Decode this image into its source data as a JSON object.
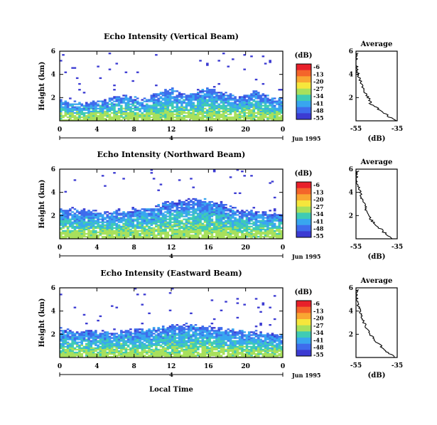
{
  "chart_data": [
    {
      "type": "heatmap",
      "title": "Echo Intensity (Vertical Beam)",
      "ylabel": "Height (km)",
      "xlim": [
        0,
        24
      ],
      "ylim": [
        0,
        6
      ],
      "xticks": [
        "0",
        "4",
        "8",
        "12",
        "16",
        "20",
        "0"
      ],
      "yticks": [
        "2",
        "4",
        "6"
      ],
      "date_label": "Jun 1995",
      "day_marker": "4",
      "colorbar": {
        "unit": "(dB)",
        "labels": [
          "-6",
          "-13",
          "-20",
          "-27",
          "-34",
          "-41",
          "-48",
          "-55"
        ],
        "colors": [
          "#e8202a",
          "#f4652a",
          "#f9a732",
          "#f6e63c",
          "#a8e05c",
          "#3fcbb4",
          "#38a6ef",
          "#3e6cec",
          "#3c3bd2"
        ]
      },
      "echo_top_km": [
        1.9,
        1.7,
        1.6,
        1.6,
        1.7,
        1.8,
        2.1,
        2.2,
        2.0,
        1.8,
        2.2,
        2.6,
        2.7,
        2.4,
        2.3,
        2.5,
        2.9,
        2.5,
        2.4,
        2.0,
        2.2,
        2.6,
        2.3,
        1.9,
        1.9
      ],
      "profile": {
        "title": "Average",
        "xlabel": "(dB)",
        "xticks": [
          "-55",
          "-35"
        ],
        "yticks": [
          "2",
          "4",
          "6"
        ],
        "height_km": [
          0,
          0.5,
          1,
          1.5,
          2,
          2.5,
          3,
          3.5,
          4,
          4.5,
          5,
          5.5,
          5.9
        ],
        "db": [
          -36,
          -40,
          -44,
          -48,
          -49,
          -51,
          -52,
          -53,
          -54,
          -54.5,
          -55,
          -55,
          -54
        ]
      }
    },
    {
      "type": "heatmap",
      "title": "Echo Intensity (Northward Beam)",
      "ylabel": "Height (km)",
      "xlim": [
        0,
        24
      ],
      "ylim": [
        0,
        6
      ],
      "xticks": [
        "0",
        "4",
        "8",
        "12",
        "16",
        "20",
        "0"
      ],
      "yticks": [
        "2",
        "4",
        "6"
      ],
      "date_label": "Jun 1995",
      "day_marker": "4",
      "colorbar": {
        "unit": "(dB)",
        "labels": [
          "-6",
          "-13",
          "-20",
          "-27",
          "-34",
          "-41",
          "-48",
          "-55"
        ],
        "colors": [
          "#e8202a",
          "#f4652a",
          "#f9a732",
          "#f6e63c",
          "#a8e05c",
          "#3fcbb4",
          "#38a6ef",
          "#3e6cec",
          "#3c3bd2"
        ]
      },
      "echo_top_km": [
        2.6,
        2.6,
        2.5,
        2.4,
        2.3,
        2.3,
        2.4,
        2.4,
        2.5,
        2.6,
        2.7,
        3.0,
        3.2,
        3.3,
        3.4,
        3.4,
        3.3,
        3.1,
        2.8,
        2.5,
        2.4,
        2.4,
        2.3,
        2.2,
        2.2
      ],
      "profile": {
        "title": "Average",
        "xlabel": "(dB)",
        "xticks": [
          "-55",
          "-35"
        ],
        "yticks": [
          "2",
          "4",
          "6"
        ],
        "height_km": [
          0,
          0.5,
          1,
          1.5,
          2,
          2.5,
          3,
          3.5,
          4,
          4.5,
          5,
          5.5,
          5.9
        ],
        "db": [
          -37,
          -41,
          -44,
          -47,
          -49,
          -50,
          -51,
          -52.5,
          -53,
          -54,
          -54.5,
          -55,
          -54
        ]
      }
    },
    {
      "type": "heatmap",
      "title": "Echo Intensity (Eastward Beam)",
      "ylabel": "Height (km)",
      "xlim": [
        0,
        24
      ],
      "ylim": [
        0,
        6
      ],
      "xticks": [
        "0",
        "4",
        "8",
        "12",
        "16",
        "20",
        "0"
      ],
      "yticks": [
        "2",
        "4",
        "6"
      ],
      "date_label": "Jun 1995",
      "day_marker": "4",
      "xlabel": "Local Time",
      "colorbar": {
        "unit": "(dB)",
        "labels": [
          "-6",
          "-13",
          "-20",
          "-27",
          "-34",
          "-41",
          "-48",
          "-55"
        ],
        "colors": [
          "#e8202a",
          "#f4652a",
          "#f9a732",
          "#f6e63c",
          "#a8e05c",
          "#3fcbb4",
          "#38a6ef",
          "#3e6cec",
          "#3c3bd2"
        ]
      },
      "echo_top_km": [
        2.5,
        2.4,
        2.2,
        2.3,
        2.2,
        2.2,
        2.2,
        2.3,
        2.3,
        2.4,
        2.5,
        2.6,
        2.7,
        2.8,
        2.8,
        2.7,
        2.6,
        2.5,
        2.4,
        2.3,
        2.2,
        2.2,
        2.1,
        2.0,
        2.0
      ],
      "profile": {
        "title": "Average",
        "xlabel": "(dB)",
        "xticks": [
          "-55",
          "-35"
        ],
        "yticks": [
          "2",
          "4",
          "6"
        ],
        "height_km": [
          0,
          0.5,
          1,
          1.5,
          2,
          2.5,
          3,
          3.5,
          4,
          4.5,
          5,
          5.5,
          5.9
        ],
        "db": [
          -36,
          -40,
          -43,
          -46,
          -48,
          -50,
          -51,
          -52,
          -53,
          -54,
          -54.5,
          -55,
          -54
        ]
      }
    }
  ]
}
